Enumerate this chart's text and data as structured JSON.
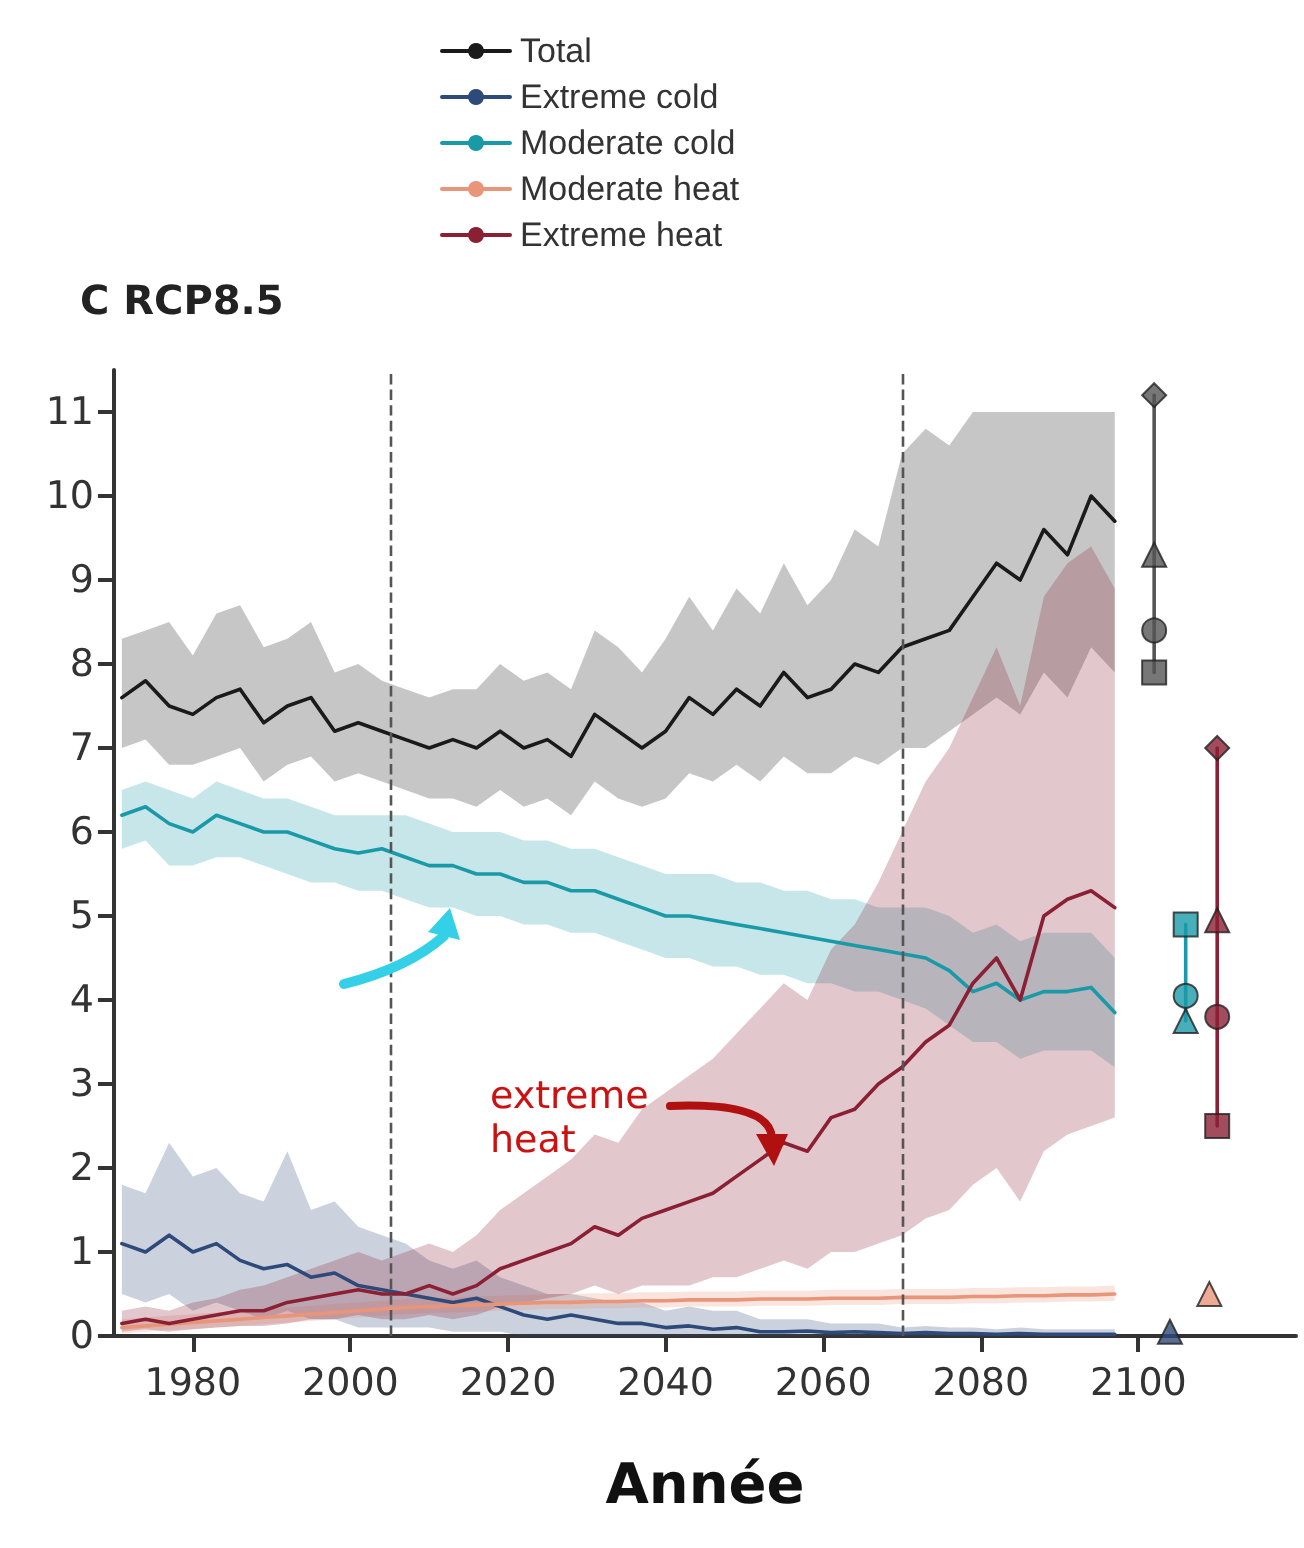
{
  "chart_data": {
    "type": "line",
    "title": "C RCP8.5",
    "xlabel": "Année",
    "xlim": [
      1970,
      2120
    ],
    "xticks": [
      1980,
      2000,
      2020,
      2040,
      2060,
      2080,
      2100
    ],
    "ylim": [
      0,
      11.5
    ],
    "yticks": [
      0,
      1,
      2,
      3,
      4,
      5,
      6,
      7,
      8,
      9,
      10,
      11
    ],
    "grid": false,
    "legend": "top",
    "marker": "none",
    "line_style": "solid",
    "x": [
      1971,
      1974,
      1977,
      1980,
      1983,
      1986,
      1989,
      1992,
      1995,
      1998,
      2001,
      2004,
      2007,
      2010,
      2013,
      2016,
      2019,
      2022,
      2025,
      2028,
      2031,
      2034,
      2037,
      2040,
      2043,
      2046,
      2049,
      2052,
      2055,
      2058,
      2061,
      2064,
      2067,
      2070,
      2073,
      2076,
      2079,
      2082,
      2085,
      2088,
      2091,
      2094,
      2097
    ],
    "series": [
      {
        "name": "Total",
        "color": "#1a1a1a",
        "values": [
          7.6,
          7.8,
          7.5,
          7.4,
          7.6,
          7.7,
          7.3,
          7.5,
          7.6,
          7.2,
          7.3,
          7.2,
          7.1,
          7.0,
          7.1,
          7.0,
          7.2,
          7.0,
          7.1,
          6.9,
          7.4,
          7.2,
          7.0,
          7.2,
          7.6,
          7.4,
          7.7,
          7.5,
          7.9,
          7.6,
          7.7,
          8.0,
          7.9,
          8.2,
          8.3,
          8.4,
          8.8,
          9.2,
          9.0,
          9.6,
          9.3,
          10.0,
          9.7
        ],
        "lower": [
          7.0,
          7.1,
          6.8,
          6.8,
          6.9,
          7.0,
          6.6,
          6.8,
          6.9,
          6.6,
          6.7,
          6.6,
          6.5,
          6.4,
          6.4,
          6.3,
          6.5,
          6.3,
          6.4,
          6.2,
          6.6,
          6.4,
          6.3,
          6.4,
          6.7,
          6.6,
          6.8,
          6.6,
          6.9,
          6.7,
          6.7,
          6.9,
          6.8,
          7.0,
          7.0,
          7.2,
          7.4,
          7.6,
          7.4,
          7.9,
          7.6,
          8.2,
          7.9
        ],
        "upper": [
          8.3,
          8.4,
          8.5,
          8.1,
          8.6,
          8.7,
          8.2,
          8.3,
          8.5,
          7.9,
          8.0,
          7.8,
          7.7,
          7.6,
          7.7,
          7.7,
          8.0,
          7.8,
          7.9,
          7.7,
          8.4,
          8.2,
          7.9,
          8.3,
          8.8,
          8.4,
          8.9,
          8.6,
          9.2,
          8.7,
          9.0,
          9.6,
          9.4,
          10.5,
          10.8,
          10.6,
          11.0,
          11.0,
          11.0,
          11.0,
          11.0,
          11.0,
          11.0
        ]
      },
      {
        "name": "Extreme cold",
        "color": "#2e4a7a",
        "values": [
          1.1,
          1.0,
          1.2,
          1.0,
          1.1,
          0.9,
          0.8,
          0.85,
          0.7,
          0.75,
          0.6,
          0.55,
          0.5,
          0.45,
          0.4,
          0.45,
          0.35,
          0.25,
          0.2,
          0.25,
          0.2,
          0.15,
          0.15,
          0.1,
          0.12,
          0.08,
          0.1,
          0.05,
          0.05,
          0.06,
          0.04,
          0.05,
          0.04,
          0.03,
          0.04,
          0.03,
          0.03,
          0.02,
          0.03,
          0.02,
          0.02,
          0.02,
          0.02
        ],
        "lower": [
          0.5,
          0.4,
          0.5,
          0.3,
          0.4,
          0.3,
          0.2,
          0.3,
          0.2,
          0.2,
          0.1,
          0.1,
          0.1,
          0.1,
          0.05,
          0.05,
          0.05,
          0.0,
          0.0,
          0.0,
          0.0,
          0.0,
          0.0,
          0.0,
          0.0,
          0.0,
          0.0,
          0.0,
          0.0,
          0.0,
          0.0,
          0.0,
          0.0,
          0.0,
          0.0,
          0.0,
          0.0,
          0.0,
          0.0,
          0.0,
          0.0,
          0.0,
          0.0
        ],
        "upper": [
          1.8,
          1.7,
          2.3,
          1.9,
          2.0,
          1.7,
          1.6,
          2.2,
          1.5,
          1.6,
          1.3,
          1.2,
          1.1,
          0.9,
          0.8,
          0.9,
          0.7,
          0.6,
          0.5,
          0.5,
          0.45,
          0.4,
          0.4,
          0.3,
          0.35,
          0.3,
          0.3,
          0.2,
          0.2,
          0.2,
          0.15,
          0.15,
          0.15,
          0.1,
          0.12,
          0.1,
          0.1,
          0.08,
          0.1,
          0.08,
          0.08,
          0.08,
          0.08
        ]
      },
      {
        "name": "Moderate cold",
        "color": "#1a9aa8",
        "values": [
          6.2,
          6.3,
          6.1,
          6.0,
          6.2,
          6.1,
          6.0,
          6.0,
          5.9,
          5.8,
          5.75,
          5.8,
          5.7,
          5.6,
          5.6,
          5.5,
          5.5,
          5.4,
          5.4,
          5.3,
          5.3,
          5.2,
          5.1,
          5.0,
          5.0,
          4.95,
          4.9,
          4.85,
          4.8,
          4.75,
          4.7,
          4.65,
          4.6,
          4.55,
          4.5,
          4.35,
          4.1,
          4.2,
          4.0,
          4.1,
          4.1,
          4.15,
          3.85
        ],
        "lower": [
          5.8,
          5.9,
          5.6,
          5.6,
          5.7,
          5.7,
          5.6,
          5.5,
          5.4,
          5.4,
          5.3,
          5.3,
          5.2,
          5.1,
          5.1,
          5.0,
          5.0,
          4.9,
          4.9,
          4.8,
          4.8,
          4.7,
          4.6,
          4.5,
          4.5,
          4.4,
          4.4,
          4.3,
          4.3,
          4.2,
          4.2,
          4.1,
          4.1,
          4.0,
          3.9,
          3.7,
          3.5,
          3.5,
          3.3,
          3.4,
          3.4,
          3.4,
          3.2
        ],
        "upper": [
          6.5,
          6.6,
          6.5,
          6.4,
          6.6,
          6.5,
          6.4,
          6.4,
          6.3,
          6.2,
          6.2,
          6.2,
          6.2,
          6.1,
          6.0,
          6.0,
          6.0,
          5.9,
          5.9,
          5.8,
          5.8,
          5.7,
          5.6,
          5.5,
          5.5,
          5.5,
          5.4,
          5.4,
          5.3,
          5.3,
          5.2,
          5.2,
          5.1,
          5.1,
          5.1,
          5.0,
          4.8,
          4.9,
          4.7,
          4.8,
          4.8,
          4.8,
          4.5
        ]
      },
      {
        "name": "Moderate heat",
        "color": "#e8957a",
        "values": [
          0.1,
          0.12,
          0.14,
          0.16,
          0.18,
          0.2,
          0.22,
          0.24,
          0.26,
          0.28,
          0.3,
          0.32,
          0.34,
          0.35,
          0.36,
          0.37,
          0.38,
          0.39,
          0.4,
          0.4,
          0.41,
          0.41,
          0.42,
          0.42,
          0.43,
          0.43,
          0.43,
          0.44,
          0.44,
          0.44,
          0.45,
          0.45,
          0.45,
          0.46,
          0.46,
          0.46,
          0.47,
          0.47,
          0.48,
          0.48,
          0.49,
          0.49,
          0.5
        ],
        "lower": [
          0.03,
          0.05,
          0.07,
          0.08,
          0.1,
          0.12,
          0.14,
          0.16,
          0.18,
          0.2,
          0.22,
          0.24,
          0.26,
          0.27,
          0.28,
          0.29,
          0.3,
          0.31,
          0.32,
          0.32,
          0.33,
          0.33,
          0.34,
          0.34,
          0.35,
          0.35,
          0.35,
          0.36,
          0.36,
          0.36,
          0.37,
          0.37,
          0.37,
          0.38,
          0.38,
          0.38,
          0.39,
          0.39,
          0.4,
          0.4,
          0.41,
          0.41,
          0.42
        ],
        "upper": [
          0.2,
          0.22,
          0.24,
          0.26,
          0.28,
          0.3,
          0.32,
          0.34,
          0.36,
          0.38,
          0.4,
          0.42,
          0.44,
          0.45,
          0.46,
          0.47,
          0.48,
          0.49,
          0.5,
          0.5,
          0.51,
          0.51,
          0.52,
          0.52,
          0.53,
          0.53,
          0.53,
          0.54,
          0.54,
          0.54,
          0.55,
          0.55,
          0.55,
          0.56,
          0.56,
          0.56,
          0.57,
          0.57,
          0.58,
          0.58,
          0.59,
          0.59,
          0.6
        ]
      },
      {
        "name": "Extreme heat",
        "color": "#8b2035",
        "values": [
          0.15,
          0.2,
          0.15,
          0.2,
          0.25,
          0.3,
          0.3,
          0.4,
          0.45,
          0.5,
          0.55,
          0.5,
          0.5,
          0.6,
          0.5,
          0.6,
          0.8,
          0.9,
          1.0,
          1.1,
          1.3,
          1.2,
          1.4,
          1.5,
          1.6,
          1.7,
          1.9,
          2.1,
          2.3,
          2.2,
          2.6,
          2.7,
          3.0,
          3.2,
          3.5,
          3.7,
          4.2,
          4.5,
          4.0,
          5.0,
          5.2,
          5.3,
          5.1
        ],
        "lower": [
          0.05,
          0.08,
          0.05,
          0.08,
          0.1,
          0.12,
          0.12,
          0.15,
          0.2,
          0.2,
          0.25,
          0.2,
          0.2,
          0.25,
          0.2,
          0.25,
          0.35,
          0.4,
          0.45,
          0.5,
          0.6,
          0.5,
          0.6,
          0.6,
          0.6,
          0.7,
          0.7,
          0.8,
          0.9,
          0.8,
          1.0,
          1.0,
          1.1,
          1.2,
          1.4,
          1.5,
          1.8,
          2.0,
          1.6,
          2.2,
          2.4,
          2.5,
          2.6
        ],
        "upper": [
          0.3,
          0.35,
          0.3,
          0.4,
          0.45,
          0.55,
          0.6,
          0.7,
          0.8,
          0.9,
          1.0,
          0.9,
          1.0,
          1.1,
          1.0,
          1.2,
          1.5,
          1.7,
          1.9,
          2.1,
          2.4,
          2.3,
          2.7,
          2.9,
          3.1,
          3.3,
          3.6,
          3.9,
          4.2,
          4.0,
          4.6,
          4.9,
          5.4,
          6.0,
          6.6,
          7.0,
          7.6,
          8.2,
          7.5,
          8.8,
          9.2,
          9.4,
          8.9
        ]
      },
      {
        "type": "scatter",
        "marker": "diamond",
        "x": [
          2102,
          2110
        ],
        "values": [
          11.2,
          7.0
        ],
        "colors": [
          "#555555",
          "#8b2035"
        ]
      },
      {
        "type": "scatter",
        "marker": "triangle",
        "x": [
          2102,
          2106,
          2110,
          2109,
          2104
        ],
        "values": [
          9.3,
          3.75,
          4.95,
          0.5,
          0.05
        ],
        "colors": [
          "#555555",
          "#1a9aa8",
          "#8b2035",
          "#e8957a",
          "#2e4a7a"
        ]
      },
      {
        "type": "scatter",
        "marker": "circle",
        "x": [
          2102,
          2106,
          2110
        ],
        "values": [
          8.4,
          4.05,
          3.8
        ],
        "colors": [
          "#555555",
          "#1a9aa8",
          "#8b2035"
        ]
      },
      {
        "type": "scatter",
        "marker": "square",
        "x": [
          2102,
          2106,
          2110
        ],
        "values": [
          7.9,
          4.9,
          2.5
        ],
        "colors": [
          "#555555",
          "#1a9aa8",
          "#8b2035"
        ]
      },
      {
        "type": "line",
        "x": [
          2102,
          2102
        ],
        "values": [
          7.9,
          11.2
        ],
        "color": "#555555"
      },
      {
        "type": "line",
        "x": [
          2106,
          2106
        ],
        "values": [
          3.75,
          4.9
        ],
        "color": "#1a9aa8"
      },
      {
        "type": "line",
        "x": [
          2110,
          2110
        ],
        "values": [
          2.5,
          7.0
        ],
        "color": "#8b2035"
      }
    ],
    "ref_lines": [
      {
        "axis": "x",
        "value": 2005,
        "color": "#555555",
        "line_style": "dashed"
      },
      {
        "axis": "x",
        "value": 2070,
        "color": "#555555",
        "line_style": "dashed"
      }
    ],
    "annotations": [
      "extreme heat"
    ]
  }
}
